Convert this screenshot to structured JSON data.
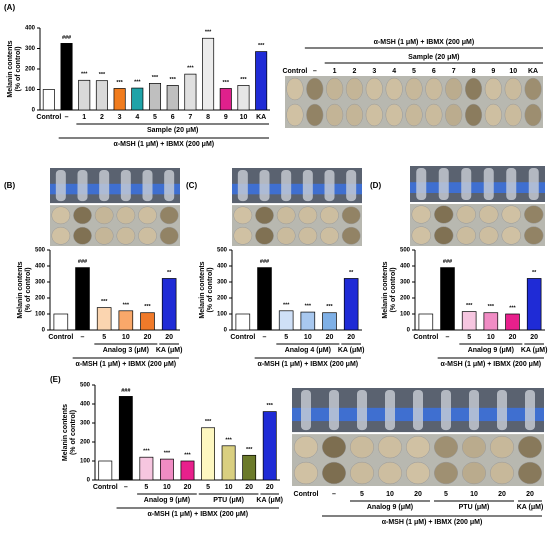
{
  "chart_data": [
    {
      "type": "bar",
      "panel": "(A)",
      "ylabel": [
        "Melanin contents",
        "(% of control)"
      ],
      "categories": [
        "Control",
        "–",
        "1",
        "2",
        "3",
        "4",
        "5",
        "6",
        "7",
        "8",
        "9",
        "10",
        "KA"
      ],
      "values": [
        100,
        325,
        145,
        143,
        105,
        107,
        130,
        120,
        175,
        350,
        105,
        120,
        285
      ],
      "colors": [
        "#ffffff",
        "#000000",
        "#d9d9d9",
        "#d9d9d9",
        "#f07c1e",
        "#1fa3a8",
        "#bfbfbf",
        "#bfbfbf",
        "#e0e0e0",
        "#ececec",
        "#e0208c",
        "#e6e6e6",
        "#1f2bd6"
      ],
      "significance": [
        null,
        "###",
        "***",
        "***",
        "***",
        "***",
        "***",
        "***",
        "***",
        "***",
        "***",
        "***",
        "***"
      ],
      "groups": [
        "Sample (20 μM)",
        "α-MSH (1 μM) + IBMX (200 μM)"
      ],
      "ylim": [
        0,
        400
      ],
      "yticks": [
        0,
        100,
        200,
        300,
        400
      ]
    },
    {
      "type": "bar",
      "panel": "(B)",
      "ylabel": [
        "Melanin contents",
        "(% of control)"
      ],
      "categories": [
        "Control",
        "–",
        "5",
        "10",
        "20",
        "20"
      ],
      "values": [
        100,
        390,
        140,
        120,
        108,
        322
      ],
      "colors": [
        "#ffffff",
        "#000000",
        "#fbd5b0",
        "#f9a86a",
        "#f07a2a",
        "#1f2bd6"
      ],
      "significance": [
        null,
        "###",
        "***",
        "***",
        "***",
        "**"
      ],
      "groups": [
        "Analog 3 (μM)",
        "KA (μM)",
        "α-MSH (1 μM) + IBMX (200 μM)"
      ],
      "ylim": [
        0,
        500
      ],
      "yticks": [
        0,
        100,
        200,
        300,
        400,
        500
      ]
    },
    {
      "type": "bar",
      "panel": "(C)",
      "ylabel": [
        "Melanin contents",
        "(% of control)"
      ],
      "categories": [
        "Control",
        "–",
        "5",
        "10",
        "20",
        "20"
      ],
      "values": [
        100,
        390,
        120,
        112,
        108,
        322
      ],
      "colors": [
        "#ffffff",
        "#000000",
        "#cfe0f7",
        "#a8c8ef",
        "#7fb0e6",
        "#1f2bd6"
      ],
      "significance": [
        null,
        "###",
        "***",
        "***",
        "***",
        "**"
      ],
      "groups": [
        "Analog 4 (μM)",
        "KA (μM)",
        "α-MSH (1 μM) + IBMX (200 μM)"
      ],
      "ylim": [
        0,
        500
      ],
      "yticks": [
        0,
        100,
        200,
        300,
        400,
        500
      ]
    },
    {
      "type": "bar",
      "panel": "(D)",
      "ylabel": [
        "Melanin contents",
        "(% of control)"
      ],
      "categories": [
        "Control",
        "–",
        "5",
        "10",
        "20",
        "20"
      ],
      "values": [
        100,
        390,
        115,
        108,
        100,
        322
      ],
      "colors": [
        "#ffffff",
        "#000000",
        "#f6c6e0",
        "#f08cc4",
        "#e8208c",
        "#1f2bd6"
      ],
      "significance": [
        null,
        "###",
        "***",
        "***",
        "***",
        "**"
      ],
      "groups": [
        "Analog 9 (μM)",
        "KA (μM)",
        "α-MSH (1 μM) + IBMX (200 μM)"
      ],
      "ylim": [
        0,
        500
      ],
      "yticks": [
        0,
        100,
        200,
        300,
        400,
        500
      ]
    },
    {
      "type": "bar",
      "panel": "(E)",
      "ylabel": [
        "Melanin contents",
        "(% of control)"
      ],
      "categories": [
        "Control",
        "–",
        "5",
        "10",
        "20",
        "5",
        "10",
        "20",
        "20"
      ],
      "values": [
        100,
        440,
        120,
        110,
        100,
        275,
        180,
        130,
        360
      ],
      "colors": [
        "#ffffff",
        "#000000",
        "#f6c6e0",
        "#f08cc4",
        "#e8208c",
        "#fdf7c0",
        "#d9cf80",
        "#6b7a2a",
        "#1f2bd6"
      ],
      "significance": [
        null,
        "###",
        "***",
        "***",
        "***",
        "***",
        "***",
        "***",
        "***"
      ],
      "groups": [
        "Analog 9 (μM)",
        "PTU (μM)",
        "KA (μM)",
        "α-MSH (1 μM) + IBMX (200 μM)"
      ],
      "ylim": [
        0,
        500
      ],
      "yticks": [
        0,
        100,
        200,
        300,
        400,
        500
      ]
    }
  ]
}
